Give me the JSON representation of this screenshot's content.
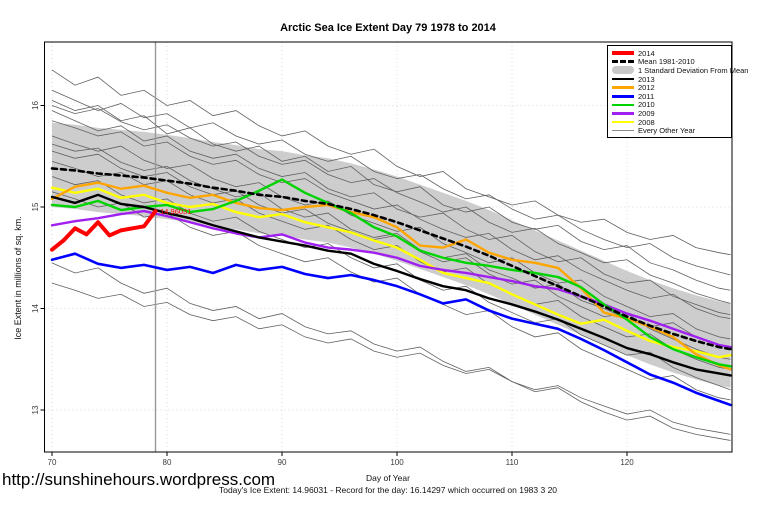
{
  "page": {
    "url_text": "http://sunshinehours.wordpress.com",
    "footer_note": "Today's Ice Extent: 14.96031  - Record for the day: 16.14297 which occurred on 1983 3 20"
  },
  "legend": {
    "items": [
      {
        "label": "2014",
        "color": "#ff0000",
        "style": "thick"
      },
      {
        "label": "Mean 1981-2010",
        "color": "#000000",
        "style": "dashed"
      },
      {
        "label": "1 Standard Deviation From Mean",
        "color": "#c8c8c8",
        "style": "patch"
      },
      {
        "label": "2013",
        "color": "#000000",
        "style": "line"
      },
      {
        "label": "2012",
        "color": "#ffa500",
        "style": "line"
      },
      {
        "label": "2011",
        "color": "#0000ff",
        "style": "line"
      },
      {
        "label": "2010",
        "color": "#00d400",
        "style": "line"
      },
      {
        "label": "2009",
        "color": "#a020f0",
        "style": "line"
      },
      {
        "label": "2008",
        "color": "#ffff00",
        "style": "line"
      },
      {
        "label": "Every Other Year",
        "color": "#8a8a8a",
        "style": "thin"
      }
    ]
  },
  "chart_data": {
    "type": "line",
    "title": "Arctic Sea Ice Extent Day 79 1978 to 2014",
    "xlabel": "Day of Year",
    "ylabel": "Ice Extent in millions of sq. km.",
    "xlim": [
      69.3,
      129.1
    ],
    "ylim": [
      12.6,
      16.6
    ],
    "x_ticks": [
      70,
      80,
      90,
      100,
      110,
      120
    ],
    "y_ticks": [
      13,
      14,
      15,
      16
    ],
    "grid": "dotted",
    "legend_position": "top-right",
    "vline": {
      "day": 79,
      "color": "#999999"
    },
    "annotation": {
      "text": "14.96031",
      "day": 79.4,
      "value": 14.93,
      "color": "#ff0000"
    },
    "day_grid": [
      70,
      72,
      74,
      76,
      78,
      80,
      82,
      84,
      86,
      88,
      90,
      92,
      94,
      96,
      98,
      100,
      102,
      104,
      106,
      108,
      110,
      112,
      114,
      116,
      118,
      120,
      122,
      124,
      126,
      128,
      129
    ],
    "band": {
      "name": "1 Standard Deviation From Mean",
      "color": "#c8c8c8",
      "upper": [
        15.83,
        15.81,
        15.78,
        15.76,
        15.74,
        15.71,
        15.68,
        15.64,
        15.61,
        15.57,
        15.55,
        15.51,
        15.48,
        15.43,
        15.37,
        15.3,
        15.22,
        15.14,
        15.06,
        14.97,
        14.87,
        14.77,
        14.67,
        14.57,
        14.47,
        14.37,
        14.28,
        14.2,
        14.13,
        14.07,
        14.05
      ],
      "lower": [
        15.0,
        14.98,
        14.95,
        14.93,
        14.91,
        14.88,
        14.85,
        14.81,
        14.78,
        14.74,
        14.72,
        14.68,
        14.65,
        14.6,
        14.54,
        14.47,
        14.39,
        14.31,
        14.23,
        14.14,
        14.04,
        13.94,
        13.84,
        13.74,
        13.64,
        13.54,
        13.45,
        13.37,
        13.3,
        13.24,
        13.22
      ]
    },
    "series": [
      {
        "name": "2008",
        "color": "#ffff00",
        "width": 2.4,
        "values": [
          15.19,
          15.14,
          15.18,
          15.09,
          15.12,
          15.04,
          15.0,
          15.03,
          14.95,
          14.9,
          14.93,
          14.85,
          14.8,
          14.75,
          14.67,
          14.6,
          14.48,
          14.35,
          14.3,
          14.25,
          14.14,
          14.04,
          13.94,
          13.85,
          13.89,
          13.78,
          13.68,
          13.62,
          13.58,
          13.52,
          13.54
        ]
      },
      {
        "name": "2012",
        "color": "#ffa500",
        "width": 2.4,
        "values": [
          15.08,
          15.2,
          15.24,
          15.18,
          15.21,
          15.14,
          15.09,
          15.12,
          15.04,
          14.99,
          14.97,
          15.0,
          15.02,
          14.95,
          14.9,
          14.8,
          14.62,
          14.6,
          14.68,
          14.55,
          14.48,
          14.45,
          14.4,
          14.2,
          13.96,
          13.9,
          13.82,
          13.72,
          13.55,
          13.44,
          13.4
        ]
      },
      {
        "name": "2009",
        "color": "#a020f0",
        "width": 2.4,
        "values": [
          14.82,
          14.86,
          14.89,
          14.93,
          14.96,
          14.91,
          14.85,
          14.79,
          14.74,
          14.7,
          14.73,
          14.65,
          14.6,
          14.58,
          14.55,
          14.5,
          14.42,
          14.38,
          14.35,
          14.31,
          14.27,
          14.22,
          14.19,
          14.12,
          14.04,
          13.95,
          13.88,
          13.8,
          13.72,
          13.64,
          13.62
        ]
      },
      {
        "name": "2011",
        "color": "#0000ff",
        "width": 2.6,
        "values": [
          14.48,
          14.54,
          14.44,
          14.4,
          14.43,
          14.38,
          14.41,
          14.35,
          14.43,
          14.38,
          14.41,
          14.34,
          14.3,
          14.33,
          14.28,
          14.22,
          14.14,
          14.05,
          14.09,
          13.98,
          13.9,
          13.85,
          13.8,
          13.7,
          13.59,
          13.47,
          13.35,
          13.27,
          13.17,
          13.09,
          13.05
        ]
      },
      {
        "name": "2010",
        "color": "#00d400",
        "width": 2.4,
        "values": [
          15.02,
          15.0,
          15.06,
          14.97,
          15.0,
          15.02,
          14.95,
          14.98,
          15.06,
          15.16,
          15.27,
          15.14,
          15.04,
          14.94,
          14.8,
          14.71,
          14.57,
          14.5,
          14.45,
          14.42,
          14.38,
          14.35,
          14.31,
          14.21,
          14.04,
          13.89,
          13.72,
          13.6,
          13.52,
          13.45,
          13.43
        ]
      },
      {
        "name": "2013",
        "color": "#000000",
        "width": 2.4,
        "values": [
          15.1,
          15.04,
          15.12,
          15.03,
          15.0,
          14.94,
          14.89,
          14.82,
          14.76,
          14.7,
          14.66,
          14.62,
          14.57,
          14.54,
          14.44,
          14.37,
          14.29,
          14.22,
          14.18,
          14.1,
          14.04,
          13.97,
          13.89,
          13.8,
          13.71,
          13.61,
          13.55,
          13.47,
          13.4,
          13.36,
          13.34
        ]
      },
      {
        "name": "Mean 1981-2010",
        "color": "#000000",
        "width": 2.6,
        "dash": "5,4",
        "values": [
          15.38,
          15.36,
          15.33,
          15.31,
          15.29,
          15.26,
          15.23,
          15.19,
          15.16,
          15.12,
          15.1,
          15.06,
          15.03,
          14.98,
          14.92,
          14.85,
          14.77,
          14.69,
          14.61,
          14.52,
          14.42,
          14.32,
          14.22,
          14.12,
          14.02,
          13.92,
          13.83,
          13.75,
          13.68,
          13.62,
          13.6
        ]
      },
      {
        "name": "2014",
        "color": "#ff0000",
        "width": 4,
        "x": [
          70,
          71,
          72,
          73,
          74,
          75,
          76,
          77,
          78,
          79
        ],
        "values": [
          14.58,
          14.67,
          14.79,
          14.73,
          14.85,
          14.72,
          14.77,
          14.79,
          14.81,
          14.96
        ]
      }
    ],
    "other_years": {
      "name": "Every Other Year",
      "color": "#606060",
      "lines": [
        [
          16.35,
          16.2,
          16.28,
          16.1,
          16.15,
          16.0,
          16.05,
          15.9,
          15.95,
          15.8,
          15.7,
          15.75,
          15.6,
          15.52,
          15.57,
          15.4,
          15.3,
          15.35,
          15.18,
          15.1,
          15.02,
          15.06,
          14.92,
          14.85,
          14.88,
          14.75,
          14.68,
          14.72,
          14.6,
          14.55,
          14.53
        ],
        [
          16.15,
          16.05,
          15.95,
          16.02,
          15.88,
          15.92,
          15.78,
          15.83,
          15.7,
          15.62,
          15.66,
          15.52,
          15.45,
          15.5,
          15.35,
          15.28,
          15.32,
          15.18,
          15.08,
          15.12,
          14.98,
          14.88,
          14.92,
          14.78,
          14.68,
          14.6,
          14.64,
          14.5,
          14.42,
          14.36,
          14.33
        ],
        [
          16.05,
          15.95,
          16.0,
          15.85,
          15.9,
          15.72,
          15.78,
          15.62,
          15.55,
          15.6,
          15.45,
          15.5,
          15.35,
          15.4,
          15.22,
          15.15,
          15.2,
          15.02,
          14.95,
          15.0,
          14.85,
          14.78,
          14.82,
          14.66,
          14.58,
          14.62,
          14.45,
          14.38,
          14.28,
          14.2,
          14.18
        ],
        [
          15.95,
          15.85,
          15.75,
          15.8,
          15.65,
          15.7,
          15.55,
          15.48,
          15.52,
          15.38,
          15.3,
          15.34,
          15.18,
          15.1,
          15.14,
          14.98,
          14.9,
          14.94,
          14.78,
          14.68,
          14.72,
          14.56,
          14.46,
          14.5,
          14.34,
          14.25,
          14.28,
          14.12,
          14.04,
          13.96,
          13.94
        ],
        [
          16.0,
          15.92,
          15.97,
          15.84,
          15.76,
          15.81,
          15.68,
          15.6,
          15.64,
          15.5,
          15.42,
          15.46,
          15.32,
          15.24,
          15.28,
          15.14,
          15.05,
          14.95,
          15.0,
          14.85,
          14.75,
          14.79,
          14.64,
          14.55,
          14.45,
          14.48,
          14.33,
          14.25,
          14.15,
          14.08,
          14.05
        ],
        [
          15.85,
          15.78,
          15.7,
          15.74,
          15.6,
          15.64,
          15.5,
          15.42,
          15.46,
          15.32,
          15.24,
          15.28,
          15.14,
          15.06,
          14.98,
          15.02,
          14.88,
          14.78,
          14.7,
          14.74,
          14.58,
          14.48,
          14.52,
          14.38,
          14.28,
          14.18,
          14.1,
          14.14,
          14.0,
          13.92,
          13.9
        ],
        [
          15.7,
          15.62,
          15.55,
          15.6,
          15.46,
          15.38,
          15.42,
          15.28,
          15.2,
          15.24,
          15.1,
          15.02,
          15.06,
          14.92,
          14.84,
          14.76,
          14.8,
          14.64,
          14.55,
          14.45,
          14.5,
          14.35,
          14.25,
          14.28,
          14.12,
          14.02,
          13.92,
          13.95,
          13.8,
          13.72,
          13.7
        ],
        [
          15.62,
          15.55,
          15.58,
          15.44,
          15.36,
          15.4,
          15.26,
          15.18,
          15.1,
          15.14,
          14.98,
          14.9,
          14.94,
          14.78,
          14.7,
          14.74,
          14.58,
          14.5,
          14.54,
          14.38,
          14.3,
          14.2,
          14.24,
          14.08,
          14.0,
          13.9,
          13.82,
          13.86,
          13.72,
          13.64,
          13.62
        ],
        [
          15.55,
          15.48,
          15.52,
          15.38,
          15.3,
          15.34,
          15.2,
          15.12,
          15.16,
          15.02,
          14.94,
          14.98,
          14.84,
          14.76,
          14.68,
          14.72,
          14.56,
          14.46,
          14.5,
          14.34,
          14.24,
          14.28,
          14.12,
          14.02,
          13.92,
          13.95,
          13.8,
          13.7,
          13.6,
          13.52,
          13.5
        ],
        [
          15.45,
          15.38,
          15.3,
          15.34,
          15.22,
          15.26,
          15.12,
          15.04,
          15.08,
          14.94,
          14.86,
          14.78,
          14.82,
          14.68,
          14.58,
          14.62,
          14.46,
          14.36,
          14.4,
          14.24,
          14.14,
          14.04,
          14.08,
          13.92,
          13.82,
          13.72,
          13.75,
          13.6,
          13.5,
          13.42,
          13.4
        ],
        [
          15.3,
          15.22,
          15.26,
          15.12,
          15.04,
          15.08,
          14.94,
          14.86,
          14.9,
          14.76,
          14.68,
          14.6,
          14.64,
          14.5,
          14.4,
          14.44,
          14.28,
          14.18,
          14.22,
          14.06,
          13.96,
          13.86,
          13.9,
          13.74,
          13.64,
          13.54,
          13.57,
          13.42,
          13.32,
          13.24,
          13.2
        ],
        [
          15.15,
          15.08,
          15.0,
          15.04,
          14.9,
          14.94,
          14.8,
          14.72,
          14.76,
          14.62,
          14.54,
          14.46,
          14.5,
          14.36,
          14.26,
          14.3,
          14.14,
          14.04,
          13.94,
          13.98,
          13.82,
          13.72,
          13.76,
          13.6,
          13.5,
          13.4,
          13.3,
          13.34,
          13.2,
          13.12,
          13.1
        ],
        [
          14.45,
          14.35,
          14.4,
          14.25,
          14.15,
          14.2,
          14.05,
          13.98,
          14.02,
          13.9,
          13.95,
          13.82,
          13.75,
          13.78,
          13.65,
          13.58,
          13.62,
          13.48,
          13.38,
          13.42,
          13.28,
          13.18,
          13.22,
          13.08,
          12.98,
          12.9,
          12.94,
          12.82,
          12.76,
          12.72,
          12.7
        ],
        [
          14.25,
          14.18,
          14.1,
          14.14,
          14.02,
          14.06,
          13.94,
          13.88,
          13.92,
          13.8,
          13.84,
          13.72,
          13.66,
          13.7,
          13.58,
          13.52,
          13.56,
          13.44,
          13.36,
          13.4,
          13.28,
          13.2,
          13.24,
          13.12,
          13.04,
          12.96,
          13.0,
          12.88,
          12.82,
          12.78,
          12.76
        ]
      ]
    }
  }
}
